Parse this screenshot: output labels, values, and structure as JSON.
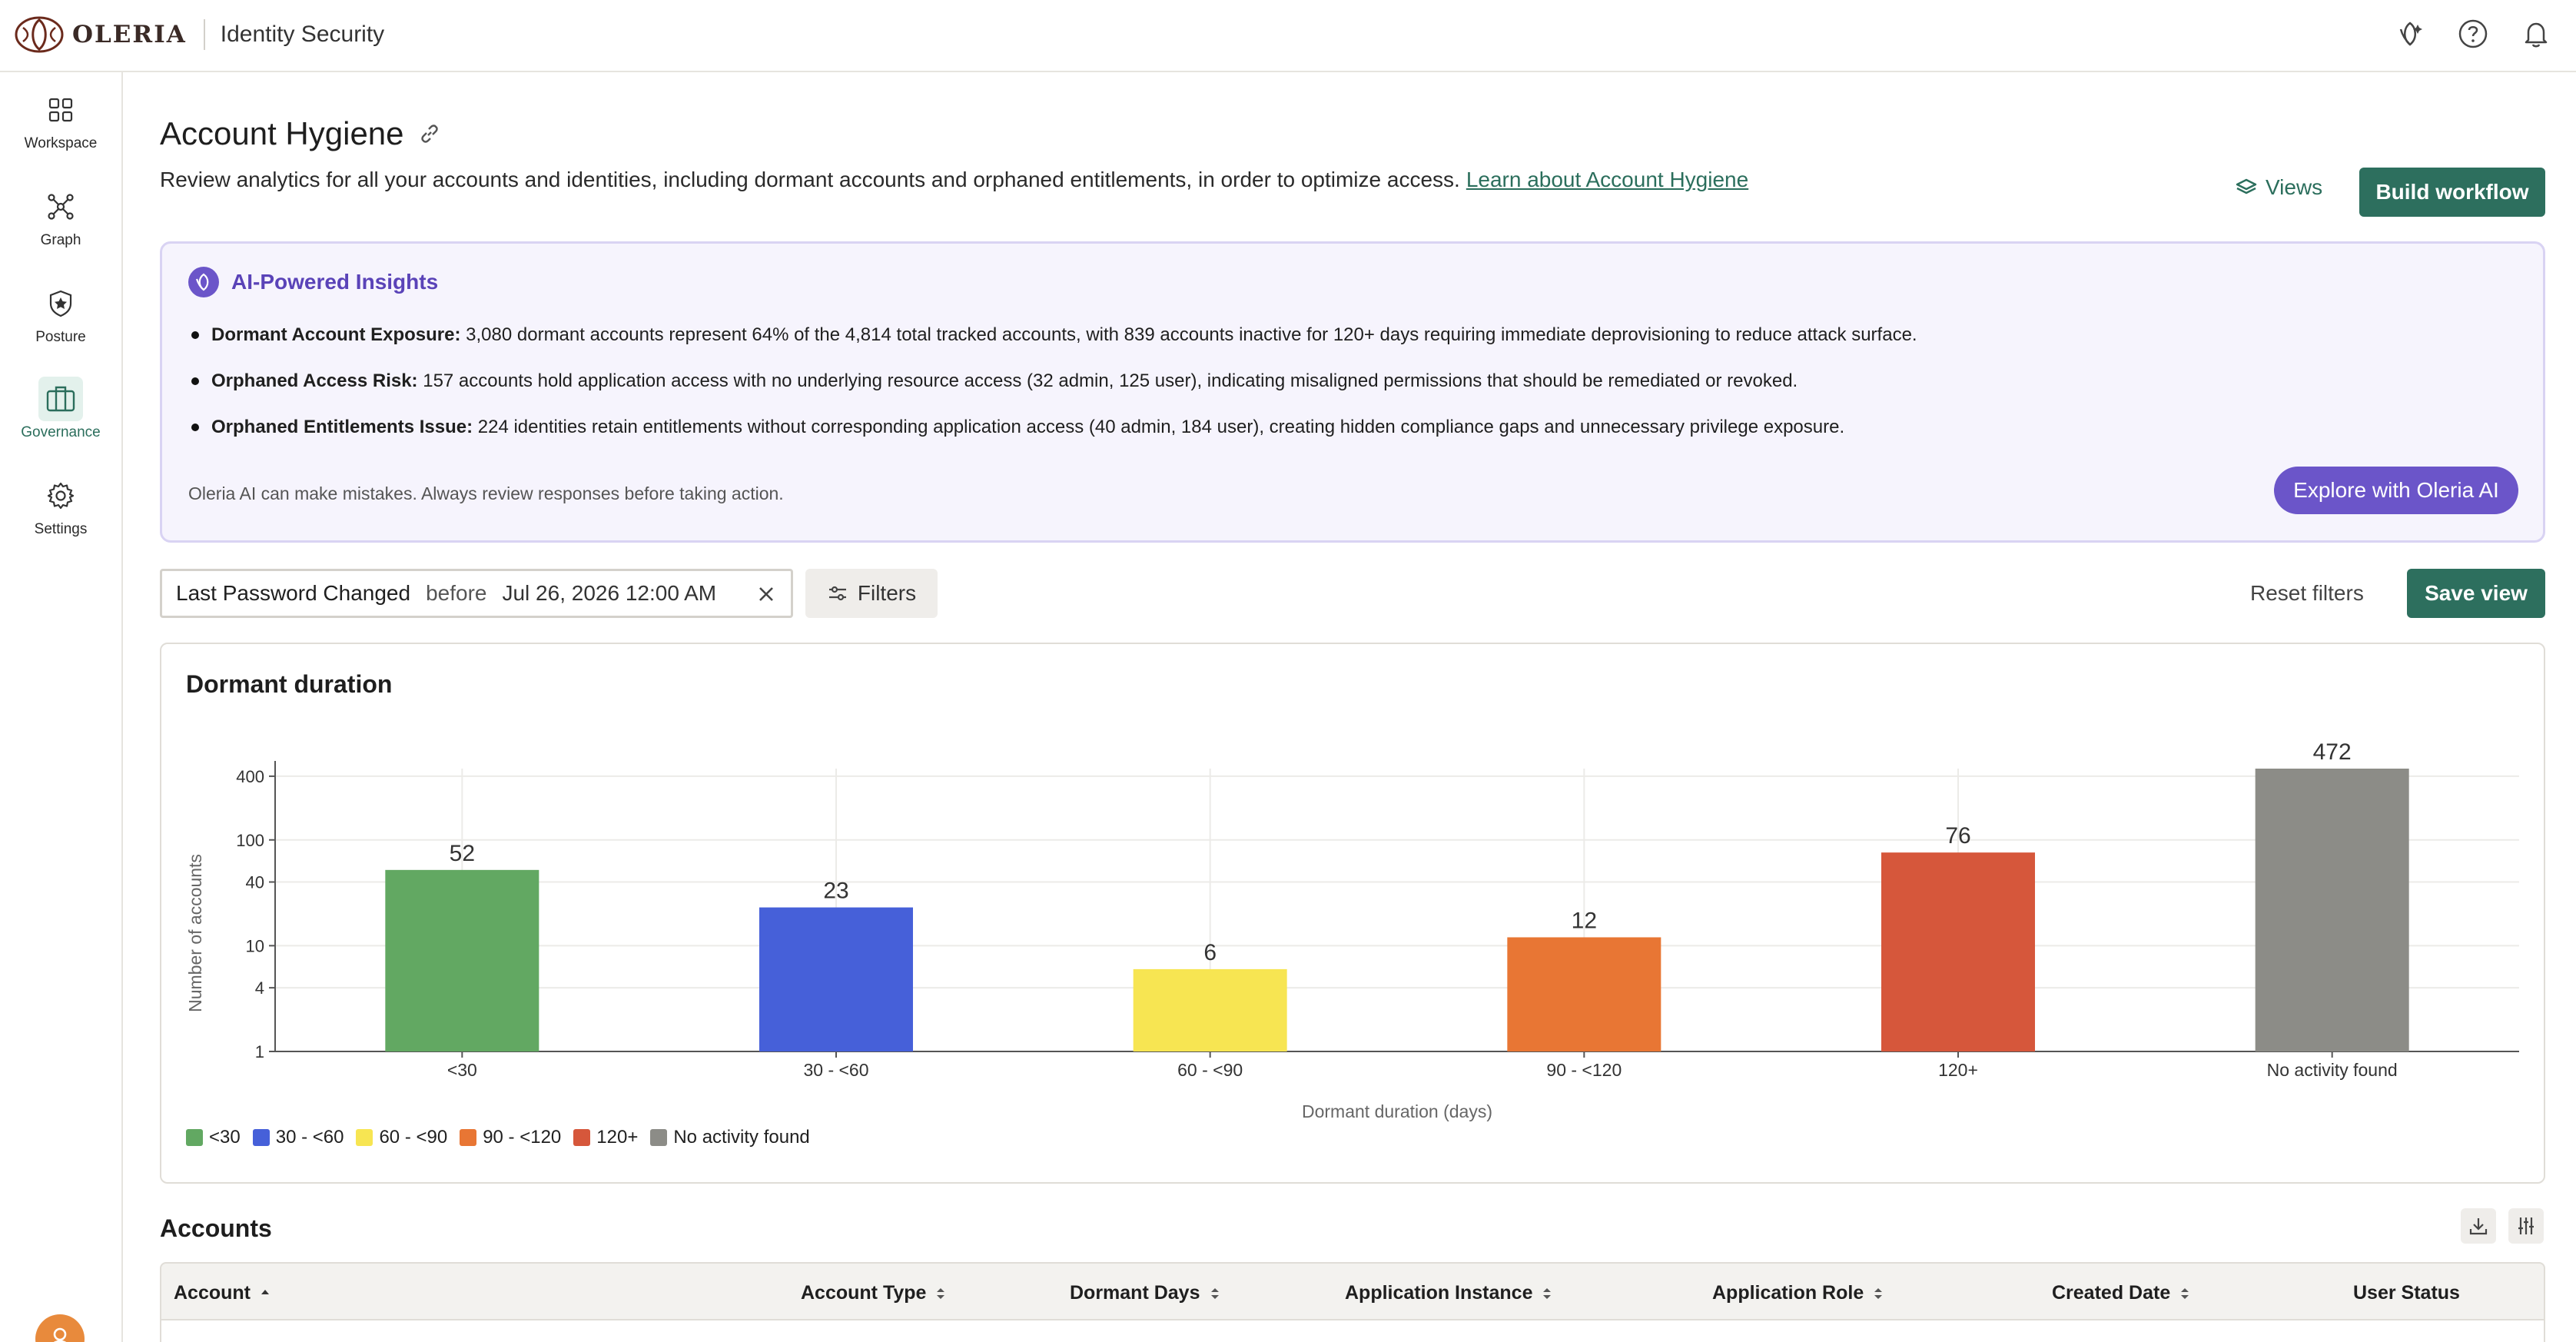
{
  "app": {
    "logo_text": "OLERIA",
    "product_name": "Identity Security"
  },
  "topbar": {
    "icons": [
      "ai-sparkle-icon",
      "help-icon",
      "bell-icon"
    ]
  },
  "sidebar": {
    "items": [
      {
        "label": "Workspace",
        "icon": "grid-icon",
        "active": false
      },
      {
        "label": "Graph",
        "icon": "graph-icon",
        "active": false
      },
      {
        "label": "Posture",
        "icon": "shield-star-icon",
        "active": false
      },
      {
        "label": "Governance",
        "icon": "briefcase-icon",
        "active": true
      },
      {
        "label": "Settings",
        "icon": "gear-icon",
        "active": false
      }
    ]
  },
  "page": {
    "title": "Account Hygiene",
    "description": "Review analytics for all your accounts and identities, including dormant accounts and orphaned entitlements, in order to optimize access.",
    "learn_link": "Learn about Account Hygiene",
    "views_label": "Views",
    "build_workflow_label": "Build workflow"
  },
  "insights": {
    "title": "AI-Powered Insights",
    "items": [
      {
        "heading": "Dormant Account Exposure:",
        "text": " 3,080 dormant accounts represent 64% of the 4,814 total tracked accounts, with 839 accounts inactive for 120+ days requiring immediate deprovisioning to reduce attack surface."
      },
      {
        "heading": "Orphaned Access Risk:",
        "text": " 157 accounts hold application access with no underlying resource access (32 admin, 125 user), indicating misaligned permissions that should be remediated or revoked."
      },
      {
        "heading": "Orphaned Entitlements Issue:",
        "text": " 224 identities retain entitlements without corresponding application access (40 admin, 184 user), creating hidden compliance gaps and unnecessary privilege exposure."
      }
    ],
    "disclaimer": "Oleria AI can make mistakes. Always review responses before taking action.",
    "explore_label": "Explore with Oleria AI"
  },
  "filters": {
    "chip_field": "Last Password Changed",
    "chip_operator": "before",
    "chip_value": "Jul 26, 2026 12:00 AM",
    "filters_label": "Filters",
    "reset_label": "Reset filters",
    "save_view_label": "Save view"
  },
  "chart_data": {
    "type": "bar",
    "title": "Dormant duration",
    "xlabel": "Dormant duration (days)",
    "ylabel": "Number of accounts",
    "yscale": "log",
    "ylim": [
      1,
      472
    ],
    "yticks": [
      1,
      4,
      10,
      40,
      100,
      400
    ],
    "categories": [
      "<30",
      "30 - <60",
      "60 - <90",
      "90 - <120",
      "120+",
      "No activity found"
    ],
    "values": [
      52,
      23,
      6,
      12,
      76,
      472
    ],
    "colors": [
      "#62a862",
      "#4660d9",
      "#f7e552",
      "#e87634",
      "#d6573b",
      "#8c8c87"
    ],
    "legend_position": "bottom-left",
    "grid": true
  },
  "accounts": {
    "title": "Accounts",
    "tools": [
      "download-icon",
      "column-settings-icon"
    ],
    "columns": [
      {
        "label": "Account",
        "sort": "asc"
      },
      {
        "label": "Account Type",
        "sort": "both"
      },
      {
        "label": "Dormant Days",
        "sort": "both"
      },
      {
        "label": "Application Instance",
        "sort": "both"
      },
      {
        "label": "Application Role",
        "sort": "both"
      },
      {
        "label": "Created Date",
        "sort": "both"
      },
      {
        "label": "User Status",
        "sort": "none"
      }
    ]
  }
}
